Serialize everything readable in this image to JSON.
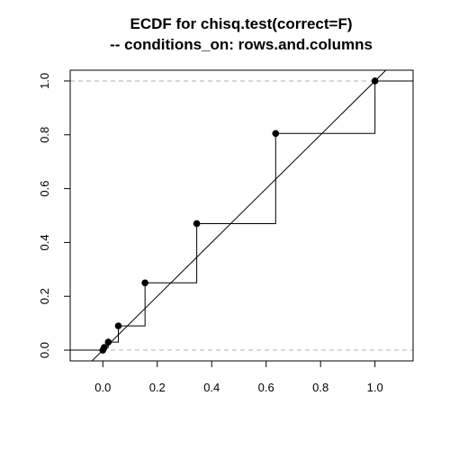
{
  "chart_data": {
    "type": "line",
    "title": [
      "ECDF for chisq.test(correct=F)",
      "-- conditions_on: rows.and.columns"
    ],
    "xlabel": "",
    "ylabel": "",
    "xlim": [
      -0.12,
      1.14
    ],
    "ylim": [
      -0.04,
      1.04
    ],
    "xticks": [
      0.0,
      0.2,
      0.4,
      0.6,
      0.8,
      1.0
    ],
    "xtick_labels": [
      "0.0",
      "0.2",
      "0.4",
      "0.6",
      "0.8",
      "1.0"
    ],
    "yticks": [
      0.0,
      0.2,
      0.4,
      0.6,
      0.8,
      1.0
    ],
    "ytick_labels": [
      "0.0",
      "0.2",
      "0.4",
      "0.6",
      "0.8",
      "1.0"
    ],
    "reference_hlines": [
      0.0,
      1.0
    ],
    "reference_line": {
      "intercept": 0,
      "slope": 1
    },
    "series": [
      {
        "x": [
          0.0,
          0.005,
          0.02,
          0.057,
          0.155,
          0.345,
          0.635,
          1.0
        ],
        "y": [
          0.0,
          0.01,
          0.03,
          0.09,
          0.25,
          0.47,
          0.805,
          1.0
        ]
      }
    ],
    "grid": false,
    "colors": {
      "line": "#000000",
      "dashed": "#b0b0b0"
    }
  }
}
